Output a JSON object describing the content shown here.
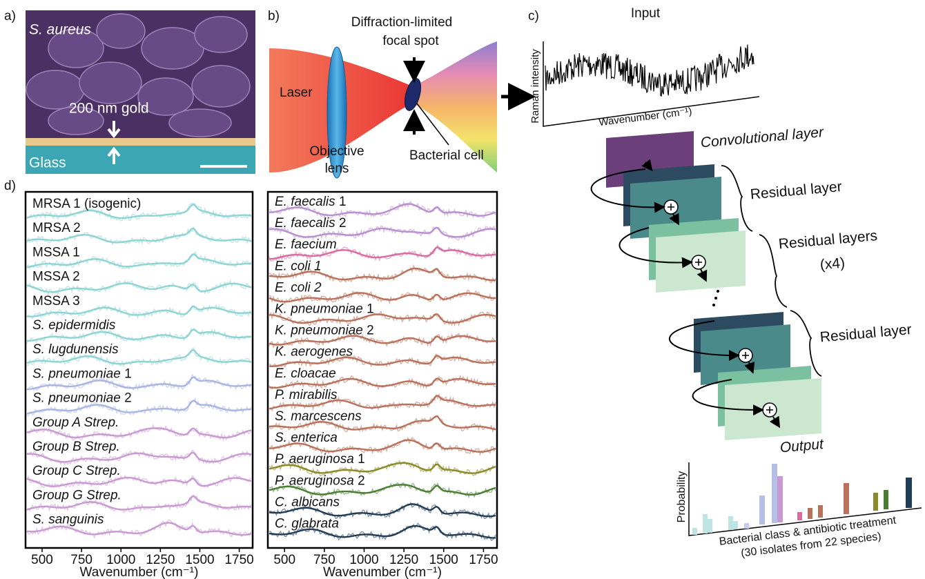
{
  "panel_labels": [
    "a)",
    "b)",
    "c)",
    "d)"
  ],
  "panel_a": {
    "species": "S. aureus",
    "gold": "200 nm gold",
    "glass": "Glass"
  },
  "panel_b": {
    "focal_spot": [
      "Diffraction-limited",
      "focal spot"
    ],
    "laser": "Laser",
    "lens": [
      "Objective",
      "lens"
    ],
    "cell": "Bacterial cell"
  },
  "panel_c": {
    "input": "Input",
    "y_label": "Raman intensity",
    "x_label": "Wavenumber (cm⁻¹)",
    "conv": "Convolutional layer",
    "residual_first": "Residual layer",
    "residual_many": [
      "Residual layers",
      "(x4)"
    ],
    "residual_last": "Residual layer",
    "output": "Output",
    "prob": "Probability",
    "classes": [
      "Bacterial class & antibiotic treatment",
      "(30 isolates from 22 species)"
    ]
  },
  "chart_data": [
    {
      "type": "line",
      "x_label": "Wavenumber (cm⁻¹)",
      "xlim": [
        395,
        1835
      ],
      "xticks": [
        500,
        750,
        1000,
        1250,
        1500,
        1750
      ],
      "series": [
        {
          "name": "MRSA 1 (isogenic)",
          "italic": false,
          "color": "#8fd3d3"
        },
        {
          "name": "MRSA 2",
          "italic": false,
          "color": "#8fd3d3"
        },
        {
          "name": "MSSA 1",
          "italic": false,
          "color": "#8fd3d3"
        },
        {
          "name": "MSSA 2",
          "italic": false,
          "color": "#8fd3d3"
        },
        {
          "name": "MSSA 3",
          "italic": false,
          "color": "#8fd3d3"
        },
        {
          "name": "S. epidermidis",
          "italic": true,
          "color": "#8fd3d3"
        },
        {
          "name": "S. lugdunensis",
          "italic": true,
          "color": "#8fd3d3"
        },
        {
          "name": "S. pneumoniae",
          "suffix": "1",
          "italic": true,
          "color": "#a9b6e2"
        },
        {
          "name": "S. pneumoniae",
          "suffix": "2",
          "italic": true,
          "color": "#a9b6e2"
        },
        {
          "name": "Group A Strep.",
          "italic": true,
          "color": "#c99ad2"
        },
        {
          "name": "Group B Strep.",
          "italic": true,
          "color": "#c99ad2"
        },
        {
          "name": "Group C Strep.",
          "italic": true,
          "color": "#c99ad2"
        },
        {
          "name": "Group G Strep.",
          "italic": true,
          "color": "#c99ad2"
        },
        {
          "name": "S. sanguinis",
          "italic": true,
          "color": "#c99ad2"
        }
      ]
    },
    {
      "type": "line",
      "x_label": "Wavenumber (cm⁻¹)",
      "xlim": [
        395,
        1835
      ],
      "xticks": [
        500,
        750,
        1000,
        1250,
        1500,
        1750
      ],
      "series": [
        {
          "name": "E. faecalis",
          "suffix": "1",
          "italic": true,
          "color": "#b98fd0"
        },
        {
          "name": "E. faecalis",
          "suffix": "2",
          "italic": true,
          "color": "#b98fd0"
        },
        {
          "name": "E. faecium",
          "italic": true,
          "color": "#d76ba2"
        },
        {
          "name": "E. coli 1",
          "italic": true,
          "color": "#b8725c"
        },
        {
          "name": "E. coli 2",
          "italic": true,
          "color": "#b8725c"
        },
        {
          "name": "K. pneumoniae",
          "suffix": "1",
          "italic": true,
          "color": "#b8725c"
        },
        {
          "name": "K. pneumoniae",
          "suffix": "2",
          "italic": true,
          "color": "#b8725c"
        },
        {
          "name": "K. aerogenes",
          "italic": true,
          "color": "#b8725c"
        },
        {
          "name": "E. cloacae",
          "italic": true,
          "color": "#b8725c"
        },
        {
          "name": "P. mirabilis",
          "italic": true,
          "color": "#b8725c"
        },
        {
          "name": "S. marcescens",
          "italic": true,
          "color": "#b8725c"
        },
        {
          "name": "S. enterica",
          "italic": true,
          "color": "#b8725c"
        },
        {
          "name": "P. aeruginosa",
          "suffix": "1",
          "italic": true,
          "color": "#8a8a2a"
        },
        {
          "name": "P. aeruginosa",
          "suffix": "2",
          "italic": true,
          "color": "#4c7d34"
        },
        {
          "name": "C. albicans",
          "italic": true,
          "color": "#213d55"
        },
        {
          "name": "C. glabrata",
          "italic": true,
          "color": "#213d55"
        }
      ]
    }
  ]
}
